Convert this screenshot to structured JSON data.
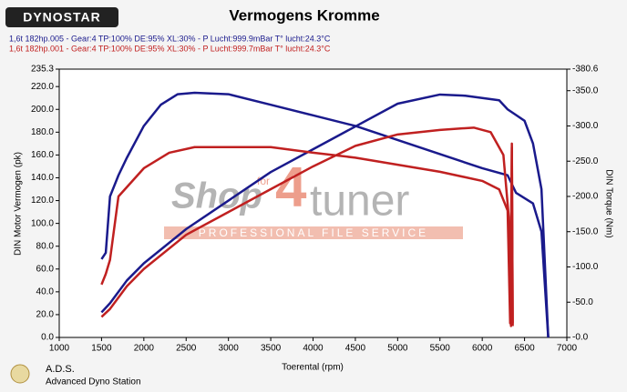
{
  "logo": "DYNOSTAR",
  "runs": [
    {
      "text": "1,6t 182hp.005 - Gear:4 TP:100% DE:95% XL:30%    - P Lucht:999.9mBar T° lucht:24.3°C",
      "color": "#1a1a8c"
    },
    {
      "text": "1,6t 182hp.001 - Gear:4 TP:100% DE:95% XL:30%    - P Lucht:999.7mBar T° lucht:24.3°C",
      "color": "#c02020"
    }
  ],
  "watermark": {
    "brand_a": "Shop",
    "brand_b": "for",
    "brand_c": "4",
    "brand_d": "tuner",
    "tagline": "PROFESSIONAL FILE SERVICE"
  },
  "footer": {
    "name": "A.D.S.",
    "subtitle": "Advanced Dyno Station"
  },
  "chart_data": {
    "type": "line",
    "title": "Vermogens Kromme",
    "xlabel": "Toerental (rpm)",
    "ylabel": "DIN Motor Vermogen (pk)",
    "y2label": "DIN Torque (Nm)",
    "xlim": [
      1000,
      7000
    ],
    "xticks": [
      1000,
      1500,
      2000,
      2500,
      3000,
      3500,
      4000,
      4500,
      5000,
      5500,
      6000,
      6500,
      7000
    ],
    "ylim": [
      0,
      235.3
    ],
    "yticks": [
      {
        "value": 0,
        "label": "0.0"
      },
      {
        "value": 20,
        "label": "20.0"
      },
      {
        "value": 40,
        "label": "40.0"
      },
      {
        "value": 60,
        "label": "60.0"
      },
      {
        "value": 80,
        "label": "80.0"
      },
      {
        "value": 100,
        "label": "100.0"
      },
      {
        "value": 120,
        "label": "120.0"
      },
      {
        "value": 140,
        "label": "140.0"
      },
      {
        "value": 160,
        "label": "160.0"
      },
      {
        "value": 180,
        "label": "180.0"
      },
      {
        "value": 200,
        "label": "200.0"
      },
      {
        "value": 220,
        "label": "220.0"
      },
      235.3
    ],
    "y2lim": [
      0,
      -380.6
    ],
    "y2ticks": [
      {
        "value": 0,
        "label": "-0.0"
      },
      {
        "value": -50,
        "label": "-50.0"
      },
      {
        "value": -100,
        "label": "-100.0"
      },
      {
        "value": -150,
        "label": "-150.0"
      },
      {
        "value": -200,
        "label": "-200.0"
      },
      {
        "value": -250,
        "label": "-250.0"
      },
      {
        "value": -300,
        "label": "-300.0"
      },
      {
        "value": -350,
        "label": "-350.0"
      },
      -380.6
    ],
    "grid": false,
    "series": [
      {
        "color": "#1a1a8c",
        "axis": "y2",
        "x": [
          1500,
          1550,
          1600,
          1700,
          1800,
          2000,
          2200,
          2400,
          2600,
          3000,
          3500,
          4000,
          4500,
          5000,
          5500,
          6000,
          6300,
          6400,
          6600,
          6700,
          6780
        ],
        "values": [
          -111,
          -120,
          -200,
          -230,
          -255,
          -300,
          -330,
          -345,
          -347,
          -345,
          -330,
          -315,
          -300,
          -280,
          -260,
          -240,
          -230,
          -205,
          -190,
          -150,
          0
        ]
      },
      {
        "color": "#1a1a8c",
        "x": [
          1500,
          1600,
          1800,
          2000,
          2500,
          3000,
          3500,
          4000,
          4500,
          5000,
          5500,
          5800,
          6000,
          6200,
          6300,
          6400,
          6500,
          6600,
          6700,
          6780
        ],
        "values": [
          22,
          30,
          50,
          65,
          95,
          120,
          145,
          165,
          185,
          205,
          213,
          212,
          210,
          208,
          200,
          195,
          190,
          170,
          130,
          0
        ]
      },
      {
        "color": "#c02020",
        "axis": "y2",
        "x": [
          1500,
          1550,
          1600,
          1700,
          2000,
          2300,
          2600,
          3500,
          4000,
          4500,
          5000,
          5500,
          6000,
          6200,
          6300,
          6330,
          6350,
          6360
        ],
        "values": [
          -75,
          -90,
          -110,
          -200,
          -240,
          -262,
          -270,
          -270,
          -262,
          -255,
          -245,
          -235,
          -222,
          -210,
          -180,
          -20,
          -270,
          -20
        ]
      },
      {
        "color": "#c02020",
        "x": [
          1500,
          1600,
          1800,
          2000,
          2500,
          3000,
          3500,
          4000,
          4500,
          5000,
          5500,
          5900,
          6100,
          6250,
          6320,
          6340,
          6350,
          6360
        ],
        "values": [
          18,
          25,
          45,
          60,
          90,
          110,
          130,
          150,
          168,
          178,
          182,
          184,
          180,
          160,
          100,
          10,
          170,
          10
        ]
      }
    ]
  }
}
